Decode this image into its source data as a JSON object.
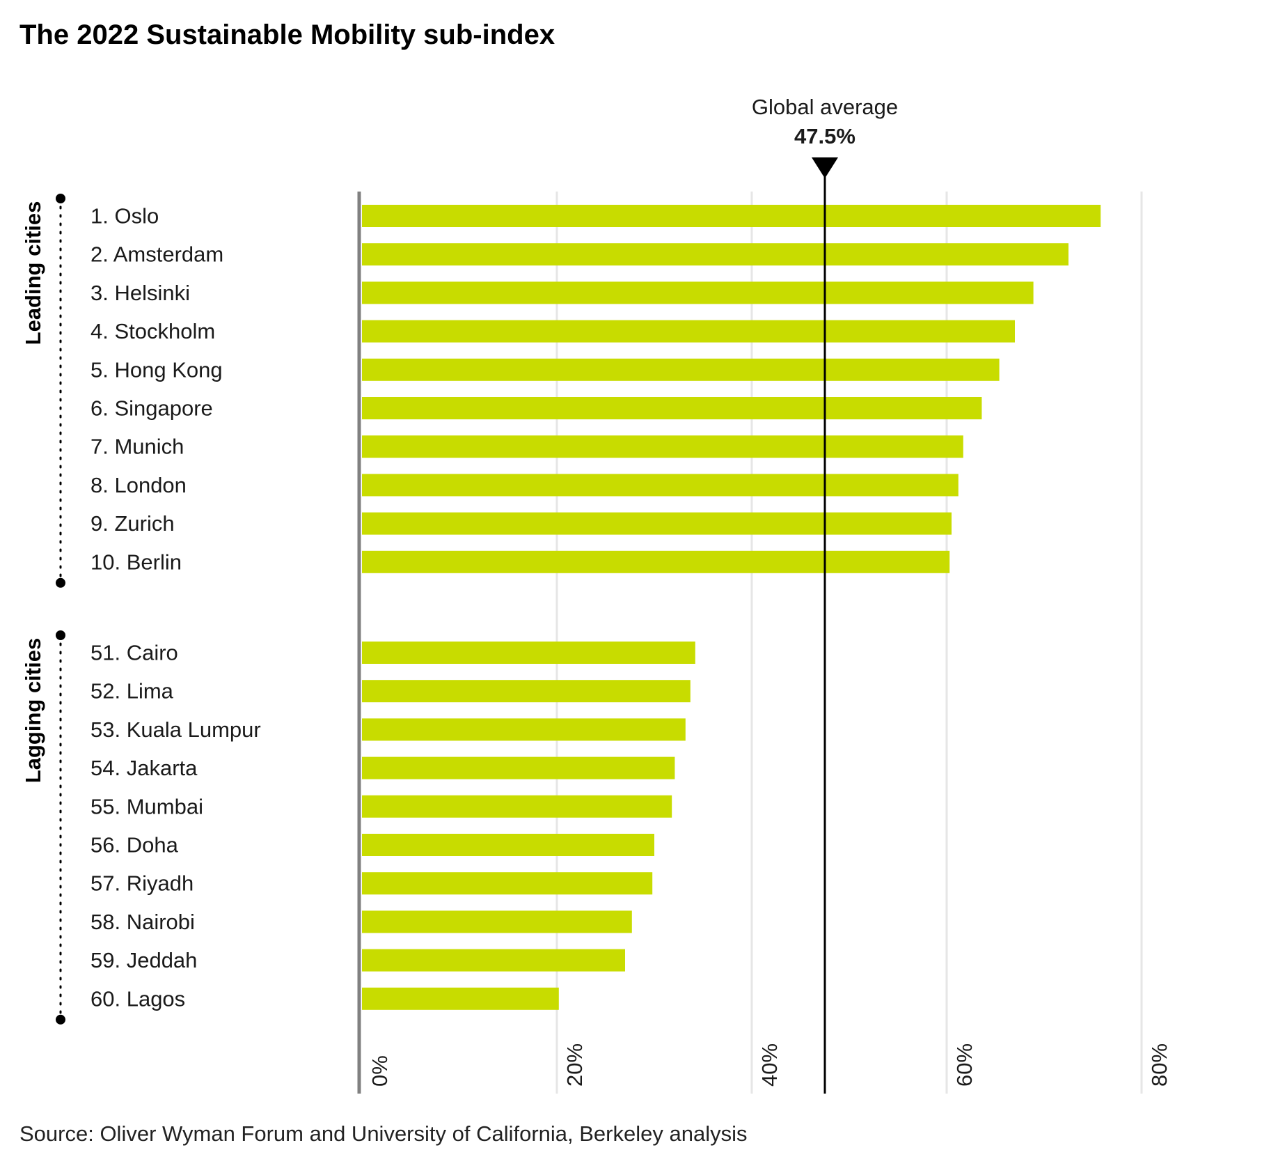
{
  "chart_data": {
    "type": "bar",
    "orientation": "horizontal",
    "title": "The 2022 Sustainable Mobility sub-index",
    "source": "Source: Oliver Wyman Forum and University of California, Berkeley analysis",
    "xlim": [
      0,
      80
    ],
    "ticks": [
      0,
      20,
      40,
      60,
      80
    ],
    "tick_labels": [
      "0%",
      "20%",
      "40%",
      "60%",
      "80%"
    ],
    "grid": true,
    "bar_color": "#c8dc00",
    "reference_line": {
      "label": "Global average",
      "value_label": "47.5%",
      "value": 47.5
    },
    "groups": [
      {
        "name": "Leading cities",
        "categories": [
          "1. Oslo",
          "2. Amsterdam",
          "3. Helsinki",
          "4. Stockholm",
          "5. Hong Kong",
          "6. Singapore",
          "7. Munich",
          "8. London",
          "9. Zurich",
          "10. Berlin"
        ],
        "values": [
          75.8,
          72.5,
          68.9,
          67.0,
          65.4,
          63.6,
          61.7,
          61.2,
          60.5,
          60.3
        ]
      },
      {
        "name": "Lagging cities",
        "categories": [
          "51. Cairo",
          "52. Lima",
          "53. Kuala Lumpur",
          "54. Jakarta",
          "55. Mumbai",
          "56. Doha",
          "57. Riyadh",
          "58. Nairobi",
          "59. Jeddah",
          "60. Lagos"
        ],
        "values": [
          34.2,
          33.7,
          33.2,
          32.1,
          31.8,
          30.0,
          29.8,
          27.7,
          27.0,
          20.2
        ]
      }
    ]
  }
}
